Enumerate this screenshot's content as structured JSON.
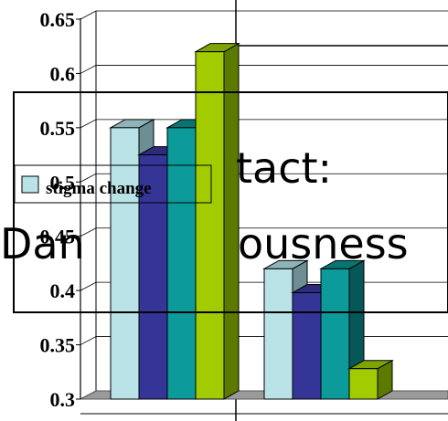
{
  "chart_data": {
    "type": "bar",
    "title_lines": [
      "tact:",
      "Dan",
      "ousness"
    ],
    "legend": {
      "label": "stigma change"
    },
    "y_ticks": [
      "0.3",
      "0.35",
      "0.4",
      "0.45",
      "0.5",
      "0.55",
      "0.6",
      "0.65"
    ],
    "ylim": [
      0.3,
      0.65
    ],
    "groups": [
      {
        "values": [
          0.55,
          0.525,
          0.55,
          0.62
        ]
      },
      {
        "values": [
          0.42,
          0.398,
          0.42,
          0.328
        ]
      }
    ],
    "colors": [
      {
        "front": "#b9e3e6",
        "side": "#6d8f93",
        "top": "#8eb4b9"
      },
      {
        "front": "#353598",
        "side": "#1d1d5e",
        "top": "#2c2c7a"
      },
      {
        "front": "#0c9a9a",
        "side": "#065757",
        "top": "#087474"
      },
      {
        "front": "#a2cc00",
        "side": "#5d7a00",
        "top": "#7fa300"
      }
    ]
  }
}
